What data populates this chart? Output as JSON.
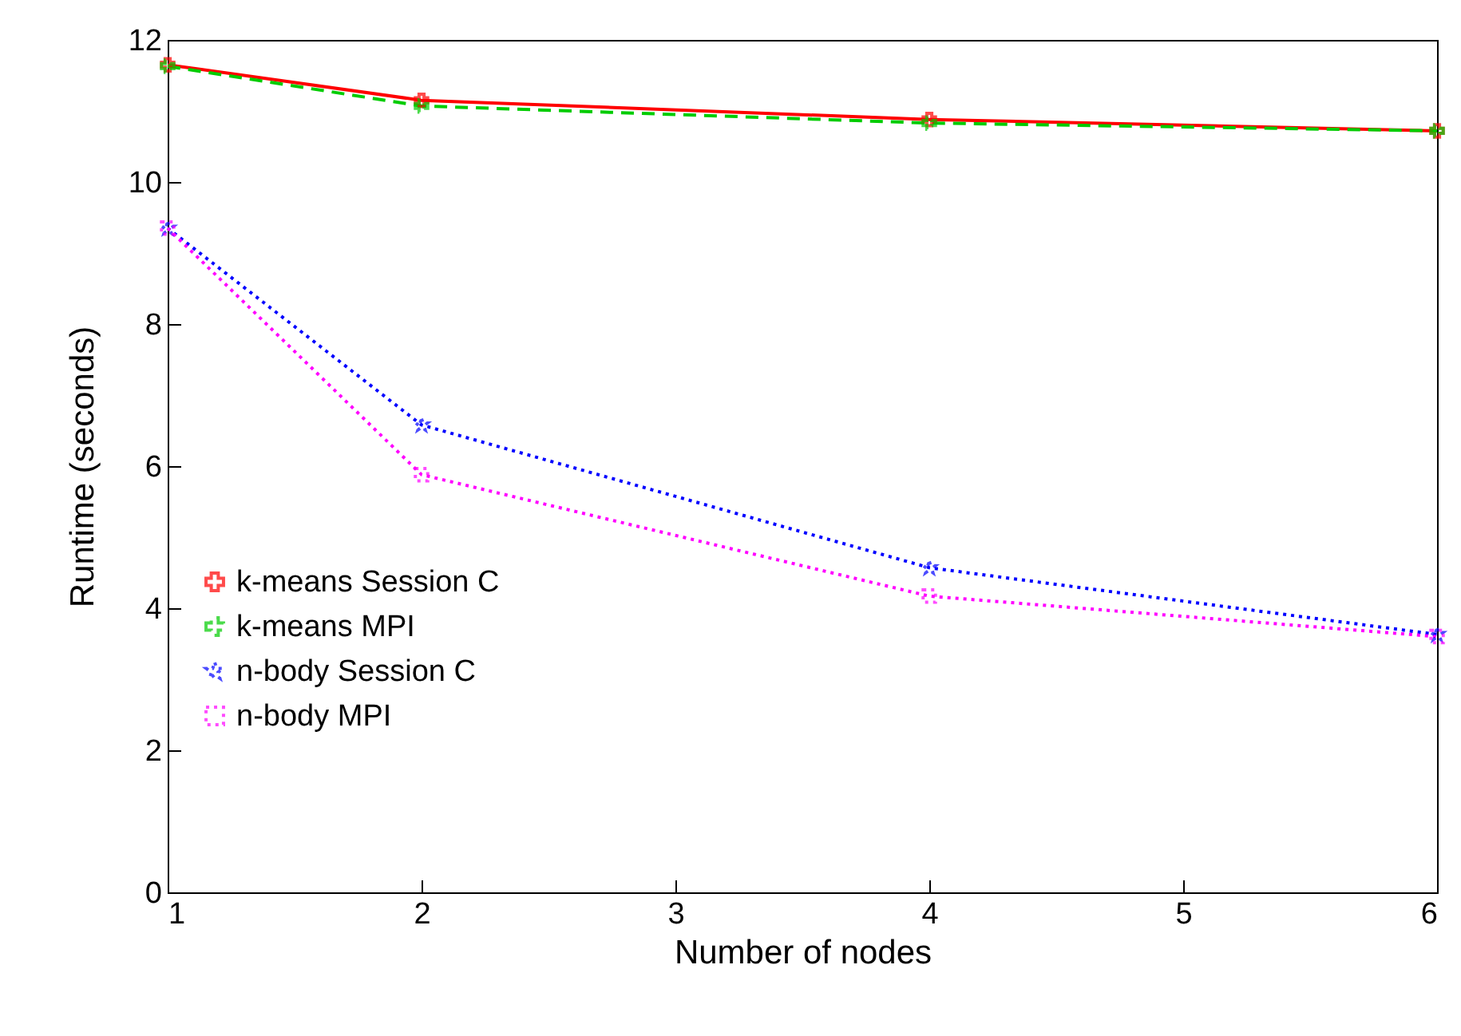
{
  "chart_data": {
    "type": "line",
    "xlabel": "Number of nodes",
    "ylabel": "Runtime (seconds)",
    "x": [
      1,
      2,
      4,
      6
    ],
    "series": [
      {
        "name": "k-means Session C",
        "color": "#ff0000",
        "values": [
          11.65,
          11.15,
          10.88,
          10.72
        ],
        "marker": "cross",
        "line_style": "solid"
      },
      {
        "name": "k-means MPI",
        "color": "#00cc00",
        "values": [
          11.63,
          11.07,
          10.83,
          10.72
        ],
        "marker": "cross",
        "line_style": "dashed"
      },
      {
        "name": "n-body Session C",
        "color": "#0000ff",
        "values": [
          9.35,
          6.58,
          4.57,
          3.63
        ],
        "marker": "star",
        "line_style": "dotted"
      },
      {
        "name": "n-body MPI",
        "color": "#ff00ff",
        "values": [
          9.35,
          5.88,
          4.17,
          3.6
        ],
        "marker": "square",
        "line_style": "dotted"
      }
    ],
    "xlim": [
      1,
      6
    ],
    "xticks": [
      1,
      2,
      3,
      4,
      5,
      6
    ],
    "ylim": [
      0,
      12
    ],
    "yticks": [
      0,
      2,
      4,
      6,
      8,
      10,
      12
    ],
    "grid": false,
    "legend": "bottom left"
  }
}
